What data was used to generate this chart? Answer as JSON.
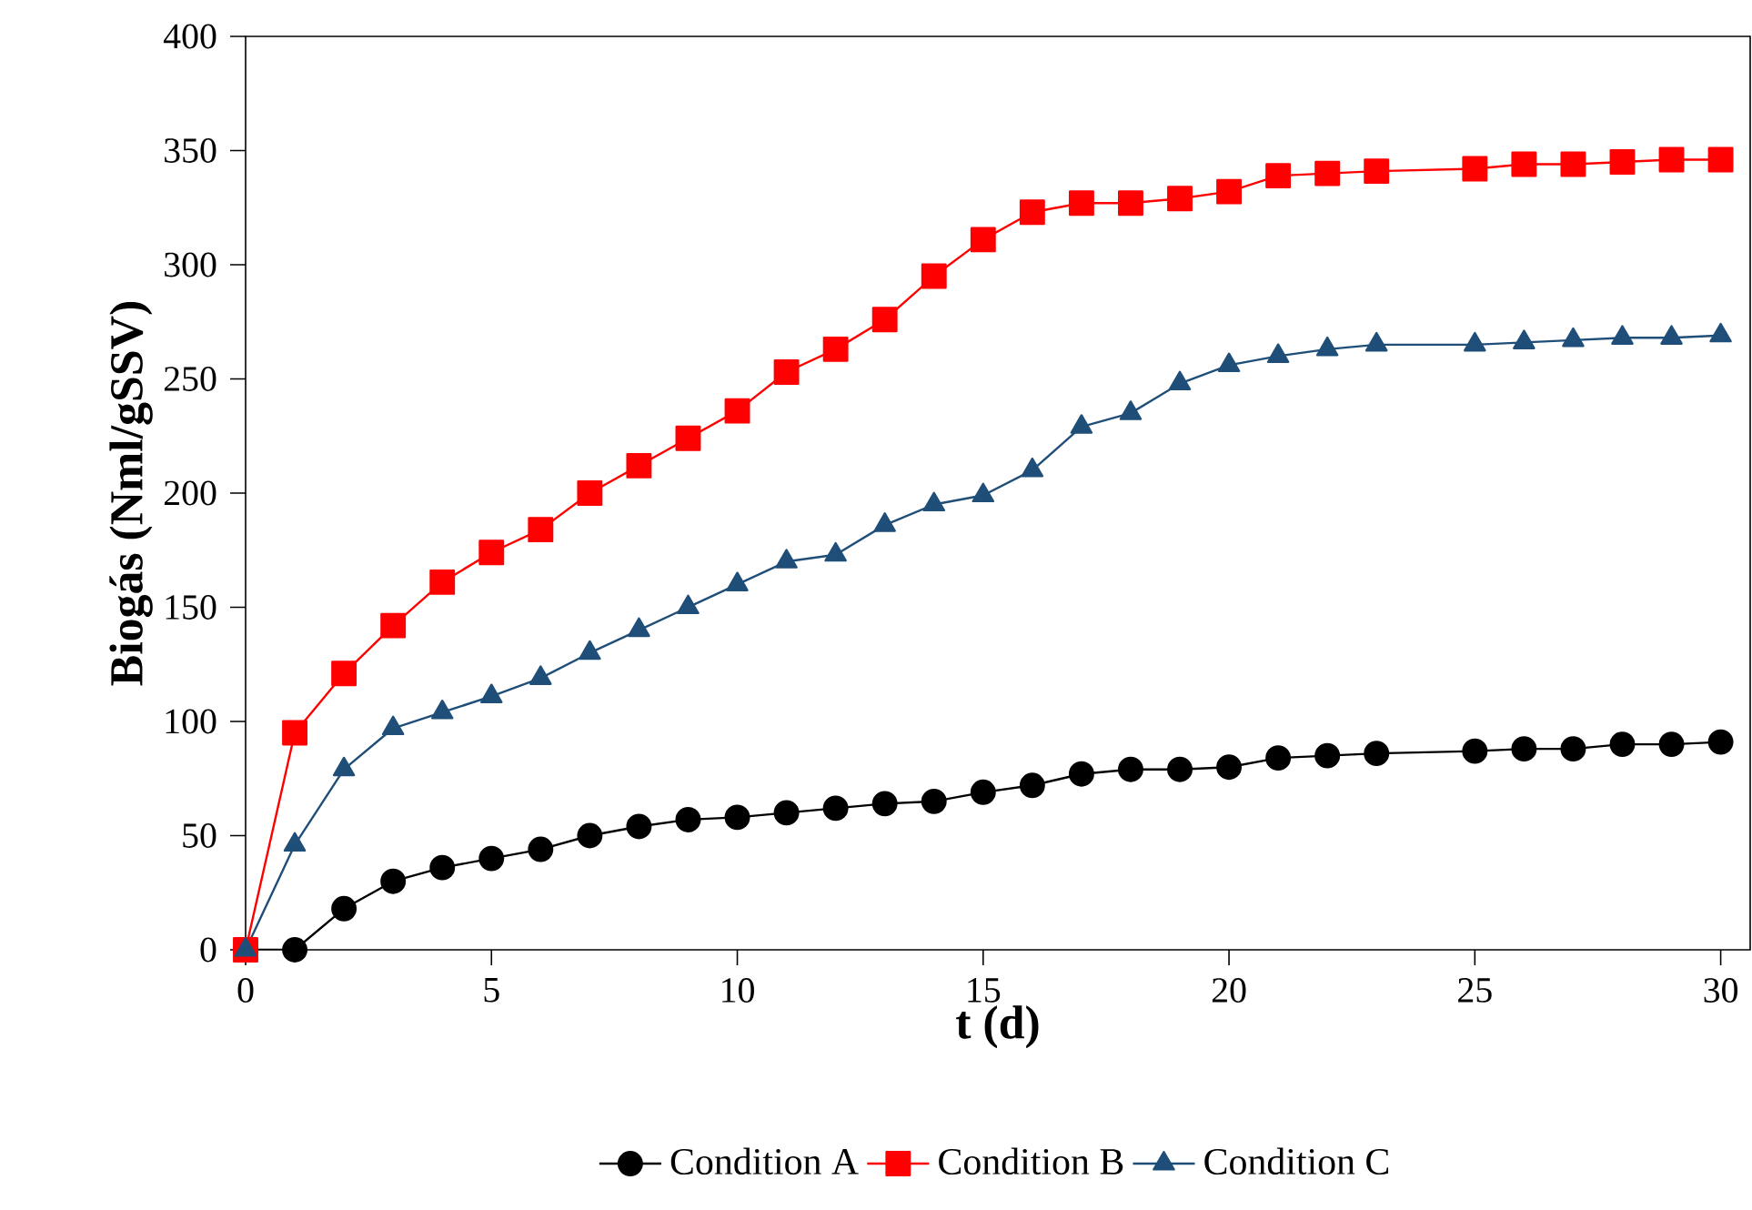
{
  "chart_data": {
    "type": "line",
    "xlabel": "t (d)",
    "ylabel": "Biogás (Nml/gSSV)",
    "xlim": [
      0,
      30.6
    ],
    "ylim": [
      0,
      400
    ],
    "xticks": [
      0,
      5,
      10,
      15,
      20,
      25,
      30
    ],
    "yticks": [
      0,
      50,
      100,
      150,
      200,
      250,
      300,
      350,
      400
    ],
    "grid": false,
    "legend": "bottom",
    "line_style": "solid",
    "x": [
      0,
      1,
      2,
      3,
      4,
      5,
      6,
      7,
      8,
      9,
      10,
      11,
      12,
      13,
      14,
      15,
      16,
      17,
      18,
      19,
      20,
      21,
      22,
      23,
      25,
      26,
      27,
      28,
      29,
      30
    ],
    "series": [
      {
        "name": "Condition A",
        "color": "#000000",
        "marker": "circle",
        "values": [
          0,
          0,
          18,
          30,
          36,
          40,
          44,
          50,
          54,
          57,
          58,
          60,
          62,
          64,
          65,
          69,
          72,
          77,
          79,
          79,
          80,
          84,
          85,
          86,
          87,
          88,
          88,
          90,
          90,
          91
        ]
      },
      {
        "name": "Condition B",
        "color": "#ff0000",
        "marker": "square",
        "values": [
          0,
          95,
          121,
          142,
          161,
          174,
          184,
          200,
          212,
          224,
          236,
          253,
          263,
          276,
          295,
          311,
          323,
          327,
          327,
          329,
          332,
          339,
          340,
          341,
          342,
          344,
          344,
          345,
          346,
          346
        ]
      },
      {
        "name": "Condition C",
        "color": "#1f4e79",
        "marker": "triangle",
        "values": [
          0,
          46,
          79,
          97,
          104,
          111,
          119,
          130,
          140,
          150,
          160,
          170,
          173,
          186,
          195,
          199,
          210,
          229,
          235,
          248,
          256,
          260,
          263,
          265,
          265,
          266,
          267,
          268,
          268,
          269
        ]
      }
    ]
  }
}
